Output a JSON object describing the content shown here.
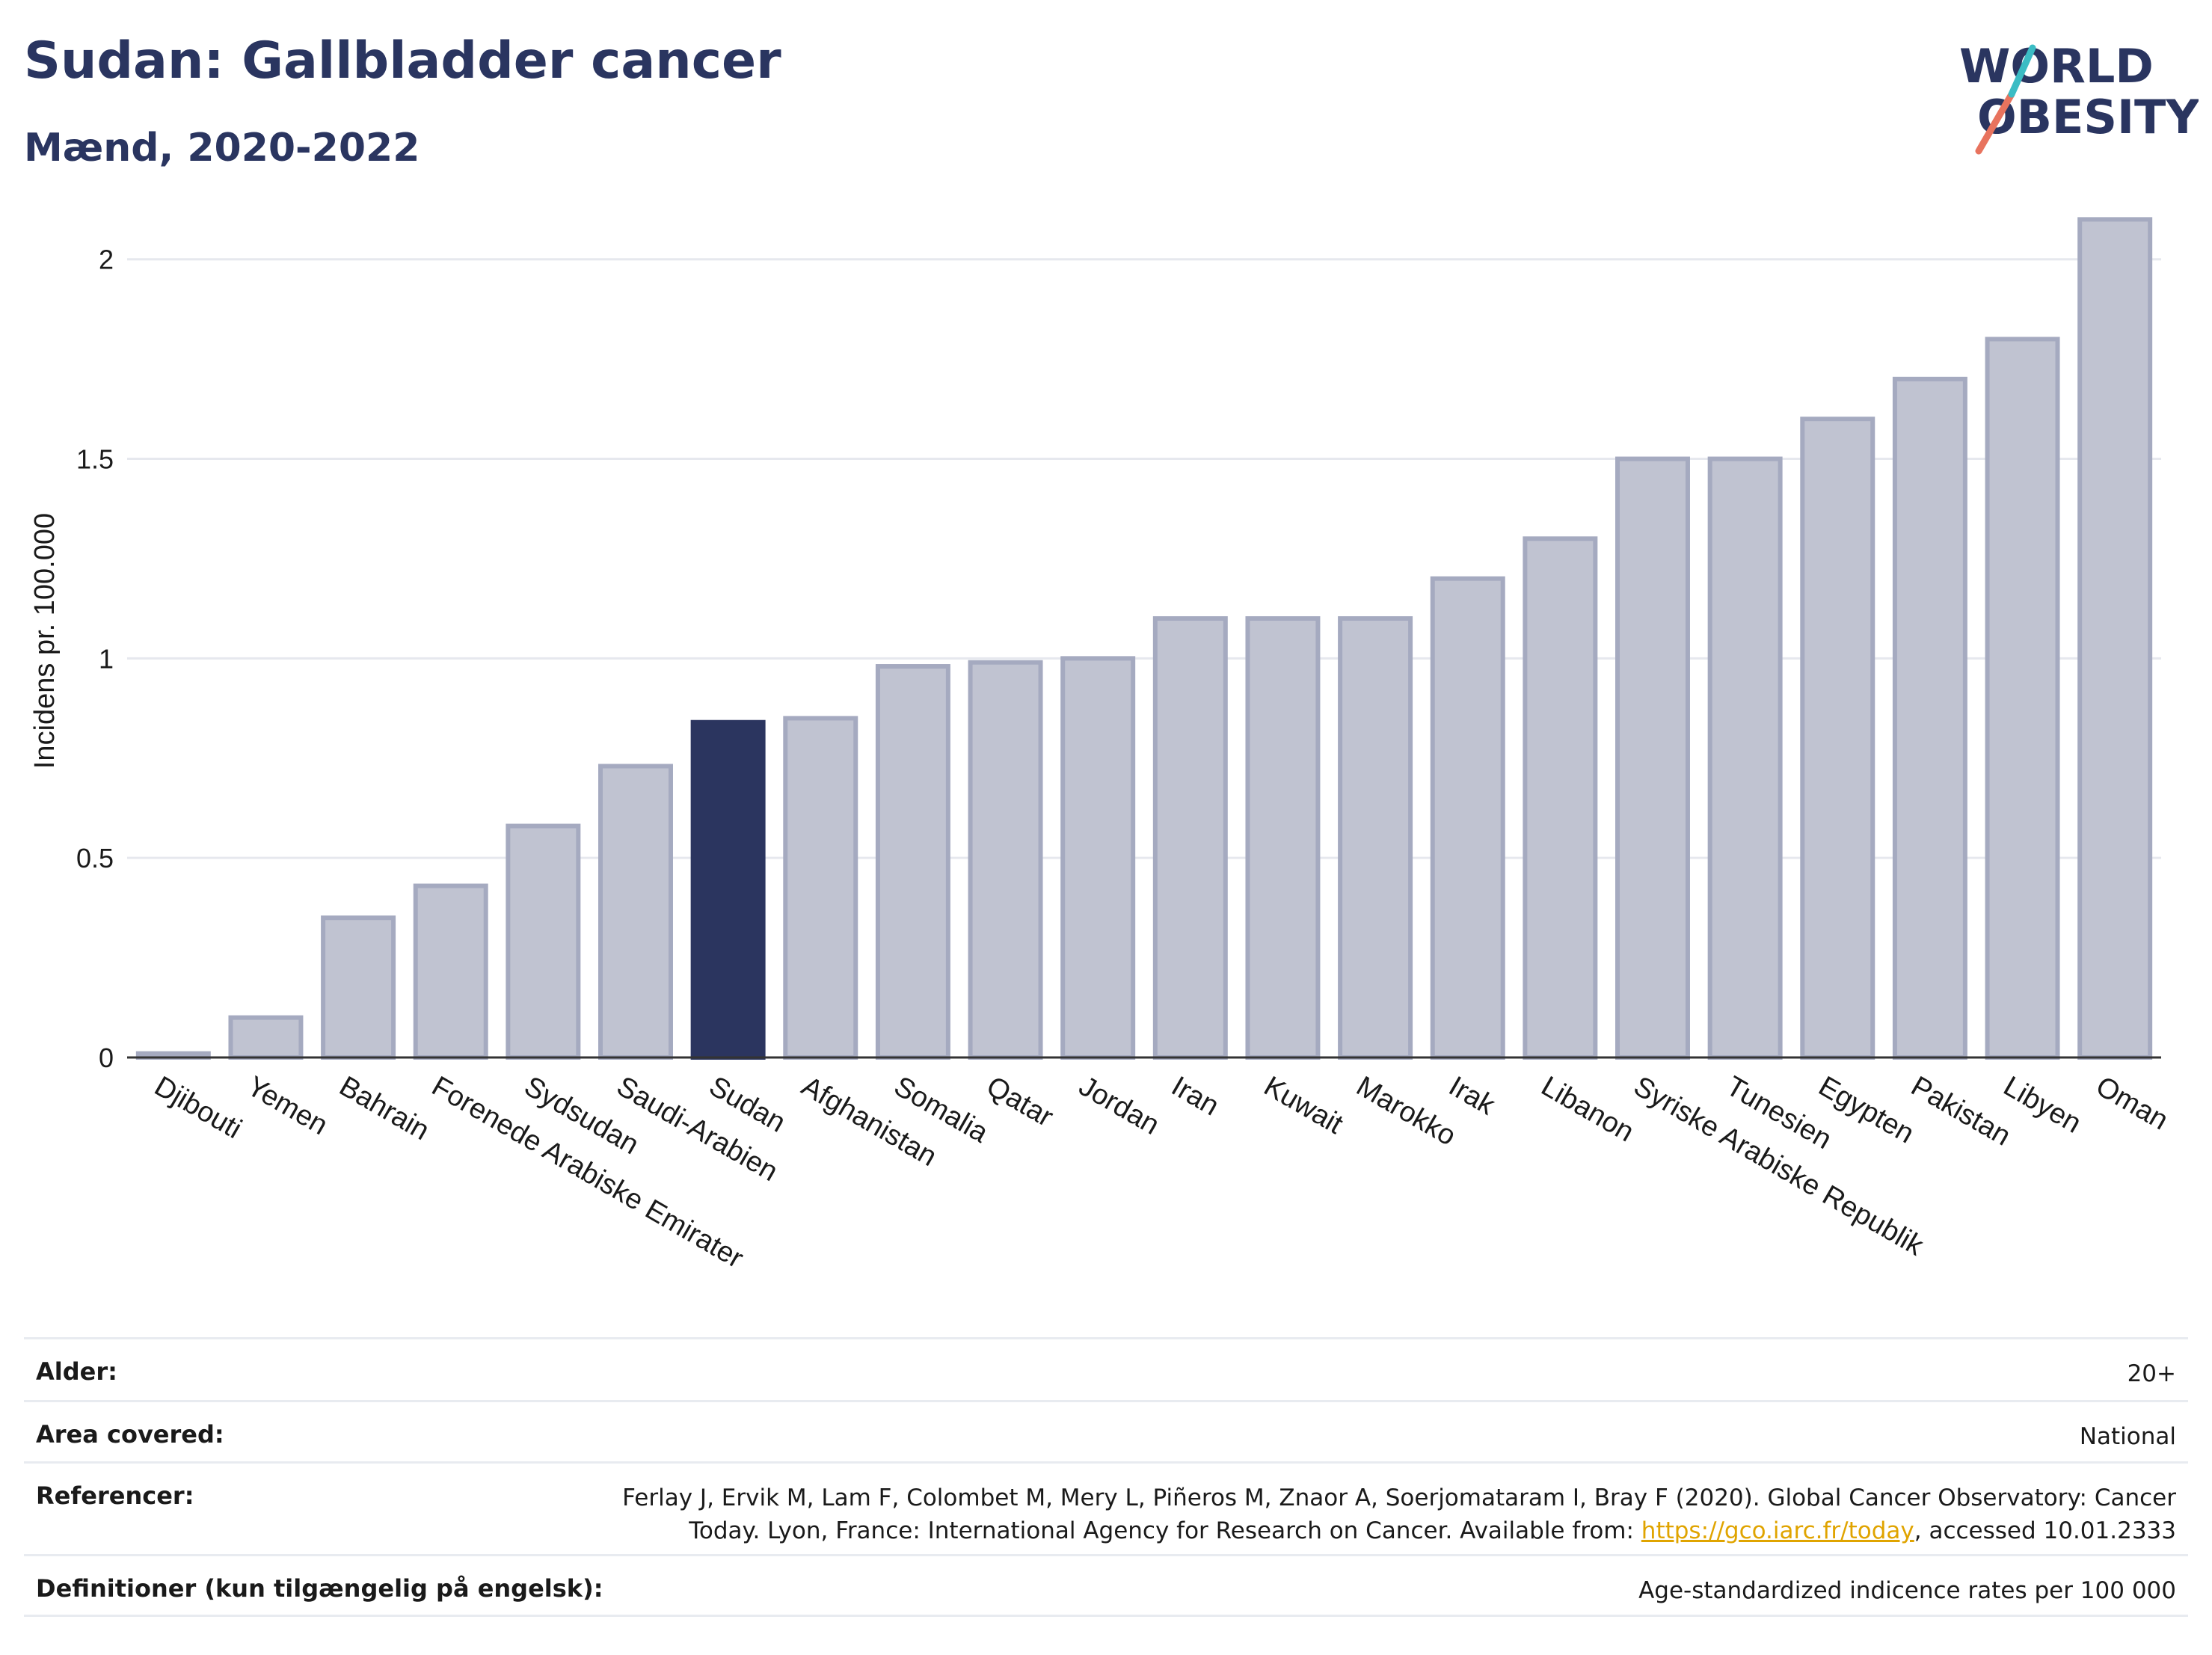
{
  "header": {
    "title": "Sudan: Gallbladder cancer",
    "subtitle": "Mænd, 2020-2022",
    "logo_text_1": "WORLD",
    "logo_text_2": "OBESITY"
  },
  "colors": {
    "highlight": "#2b355f",
    "bar_fill": "#c0c3d1",
    "bar_stroke": "#a5aac0",
    "grid": "#e6e8ee",
    "title": "#2a3560",
    "logo_teal": "#3bbcc4",
    "logo_coral": "#e8735e"
  },
  "chart_data": {
    "type": "bar",
    "ylabel": "Incidens pr. 100.000",
    "xlabel": "",
    "ylim": [
      0,
      2.2
    ],
    "yticks": [
      0,
      0.5,
      1,
      1.5,
      2
    ],
    "ytick_labels": [
      "0",
      "0.5",
      "1",
      "1.5",
      "2"
    ],
    "grid": true,
    "highlight_category": "Sudan",
    "categories": [
      "Djibouti",
      "Yemen",
      "Bahrain",
      "Forenede Arabiske Emirater",
      "Sydsudan",
      "Saudi-Arabien",
      "Sudan",
      "Afghanistan",
      "Somalia",
      "Qatar",
      "Jordan",
      "Iran",
      "Kuwait",
      "Marokko",
      "Irak",
      "Libanon",
      "Syriske Arabiske Republik",
      "Tunesien",
      "Egypten",
      "Pakistan",
      "Libyen",
      "Oman"
    ],
    "values": [
      0.01,
      0.1,
      0.35,
      0.43,
      0.58,
      0.73,
      0.84,
      0.85,
      0.98,
      0.99,
      1.0,
      1.1,
      1.1,
      1.1,
      1.2,
      1.3,
      1.5,
      1.5,
      1.6,
      1.7,
      1.8,
      2.1
    ]
  },
  "info": {
    "rows": [
      {
        "key": "Alder:",
        "value": "20+"
      },
      {
        "key": "Area covered:",
        "value": "National"
      },
      {
        "key": "Referencer:",
        "value_line1": "Ferlay J, Ervik M, Lam F, Colombet M, Mery L, Piñeros M, Znaor A, Soerjomataram I, Bray F (2020). Global Cancer Observatory: Cancer",
        "value_line2_pre": "Today. Lyon, France: International Agency for Research on Cancer. Available from: ",
        "link": "https://gco.iarc.fr/today",
        "value_line2_post": ", accessed 10.01.2333"
      },
      {
        "key": "Definitioner (kun tilgængelig på engelsk):",
        "value": "Age-standardized indicence rates per 100 000"
      }
    ]
  }
}
